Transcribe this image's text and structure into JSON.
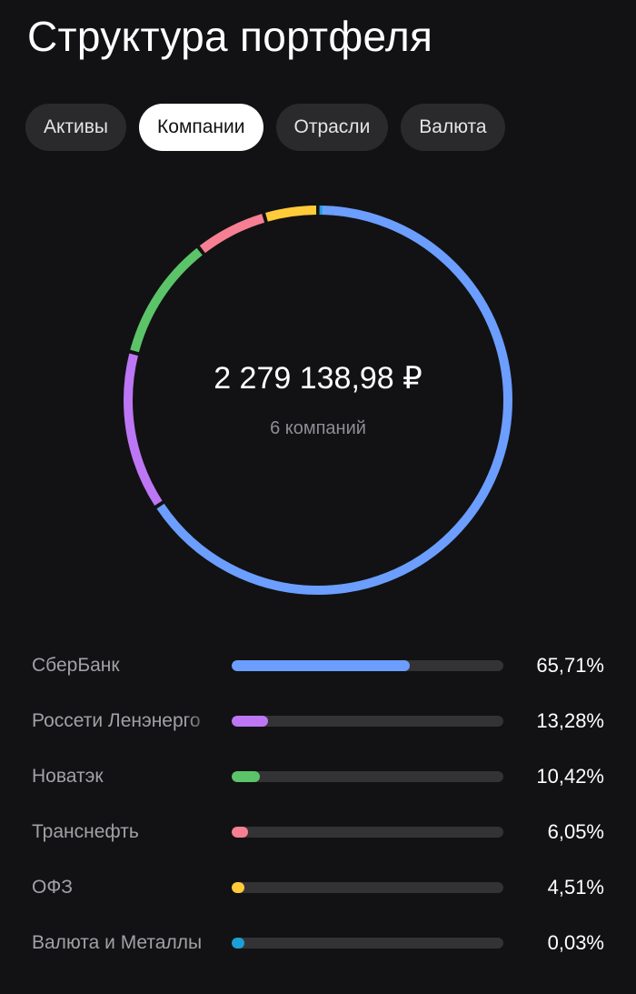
{
  "header": {
    "title": "Структура портфеля"
  },
  "tabs": [
    {
      "label": "Активы",
      "active": false
    },
    {
      "label": "Компании",
      "active": true
    },
    {
      "label": "Отрасли",
      "active": false
    },
    {
      "label": "Валюта",
      "active": false
    }
  ],
  "summary": {
    "total": "2 279 138,98 ₽",
    "count_label": "6 компаний"
  },
  "companies": [
    {
      "name": "СберБанк",
      "percent_label": "65,71%",
      "share": 65.71,
      "color": "#6b9eff"
    },
    {
      "name": "Россети Ленэнерго",
      "percent_label": "13,28%",
      "share": 13.28,
      "color": "#bd76f4"
    },
    {
      "name": "Новатэк",
      "percent_label": "10,42%",
      "share": 10.42,
      "color": "#5cc468"
    },
    {
      "name": "Транснефть",
      "percent_label": "6,05%",
      "share": 6.05,
      "color": "#f77f93"
    },
    {
      "name": "ОФЗ",
      "percent_label": "4,51%",
      "share": 4.51,
      "color": "#ffcb39"
    },
    {
      "name": "Валюта и Металлы",
      "percent_label": "0,03%",
      "share": 0.03,
      "color": "#1a9fd9"
    }
  ],
  "colors": {
    "background": "#121214",
    "track": "#333336",
    "tab_bg": "#2a2a2d",
    "tab_active_bg": "#ffffff"
  }
}
